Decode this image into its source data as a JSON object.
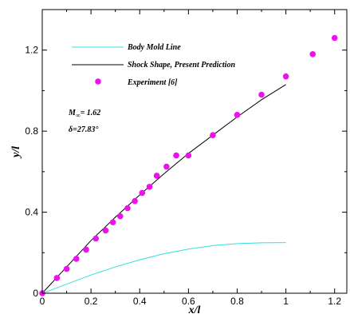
{
  "chart_data": {
    "type": "scatter",
    "xlabel": "x/l",
    "ylabel": "y/l",
    "xlim": [
      0,
      1.25
    ],
    "ylim": [
      0,
      1.4
    ],
    "x_ticks": [
      0,
      0.2,
      0.4,
      0.6,
      0.8,
      1,
      1.2
    ],
    "x_tick_labels": [
      "0",
      "0.2",
      "0.4",
      "0.6",
      "0.8",
      "1",
      "1.2"
    ],
    "y_ticks": [
      0,
      0.4,
      0.8,
      1.2
    ],
    "y_tick_labels": [
      "0",
      "0.4",
      "0.8",
      "1.2"
    ],
    "grid": false,
    "legend_position": "top-left",
    "annotations": {
      "mach": "M",
      "mach_sub": "∞",
      "mach_value": "= 1.62",
      "delta": "δ=27.83°"
    },
    "series": [
      {
        "name": "Body Mold Line",
        "type": "line",
        "color": "#33dde0",
        "x": [
          0,
          0.05,
          0.1,
          0.2,
          0.3,
          0.4,
          0.5,
          0.6,
          0.7,
          0.8,
          0.9,
          1.0
        ],
        "y": [
          0,
          0.022,
          0.045,
          0.09,
          0.13,
          0.165,
          0.195,
          0.218,
          0.235,
          0.245,
          0.249,
          0.25
        ]
      },
      {
        "name": "Shock Shape, Present Prediction",
        "type": "line",
        "color": "#000000",
        "x": [
          0,
          0.1,
          0.2,
          0.3,
          0.4,
          0.5,
          0.6,
          0.7,
          0.8,
          0.9,
          1.0
        ],
        "y": [
          0,
          0.13,
          0.26,
          0.375,
          0.485,
          0.59,
          0.69,
          0.78,
          0.87,
          0.955,
          1.03
        ]
      },
      {
        "name": "Experiment [6]",
        "type": "scatter",
        "color": "#ee11ee",
        "x": [
          0,
          0.06,
          0.1,
          0.14,
          0.18,
          0.22,
          0.26,
          0.29,
          0.32,
          0.35,
          0.38,
          0.41,
          0.44,
          0.47,
          0.51,
          0.55,
          0.6,
          0.7,
          0.8,
          0.9,
          1.0,
          1.11,
          1.2
        ],
        "y": [
          0,
          0.075,
          0.12,
          0.17,
          0.215,
          0.27,
          0.31,
          0.35,
          0.38,
          0.42,
          0.455,
          0.495,
          0.525,
          0.58,
          0.625,
          0.68,
          0.68,
          0.78,
          0.88,
          0.98,
          1.07,
          1.18,
          1.26
        ]
      }
    ]
  }
}
